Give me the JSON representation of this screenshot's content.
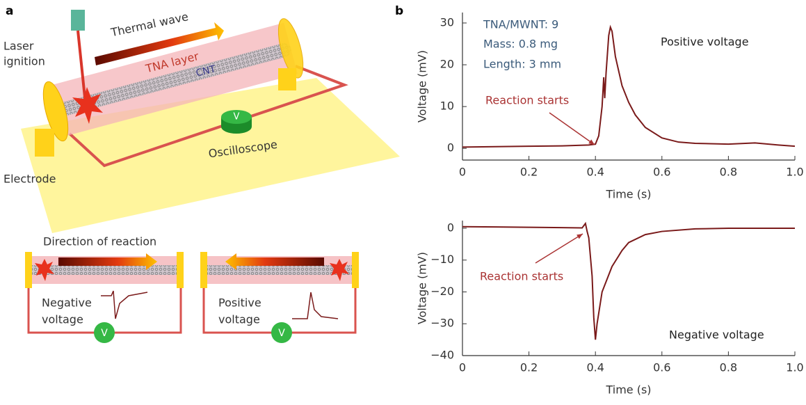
{
  "panels": {
    "a": "a",
    "b": "b"
  },
  "diagram": {
    "laser_ignition": [
      "Laser",
      "ignition"
    ],
    "thermal_wave": "Thermal wave",
    "tna_layer": "TNA layer",
    "cnt": "CNT",
    "electrode": "Electrode",
    "oscilloscope": "Oscilloscope",
    "meter": "V",
    "direction": "Direction of reaction",
    "negative": [
      "Negative",
      "voltage"
    ],
    "positive": [
      "Positive",
      "voltage"
    ],
    "meter_left": "V",
    "meter_right": "V"
  },
  "chart_data": [
    {
      "type": "line",
      "x_label": "Time (s)",
      "y_label": "Voltage (mV)",
      "annotations": [
        "TNA/MWNT: 9",
        "Mass: 0.8 mg",
        "Length: 3 mm",
        "Positive voltage",
        "Reaction starts"
      ],
      "x": [
        0,
        0.1,
        0.2,
        0.3,
        0.38,
        0.4,
        0.41,
        0.42,
        0.425,
        0.428,
        0.432,
        0.44,
        0.445,
        0.45,
        0.46,
        0.48,
        0.5,
        0.52,
        0.55,
        0.6,
        0.65,
        0.7,
        0.8,
        0.88,
        0.95,
        1.0
      ],
      "series": [
        {
          "color": "#7a1a1a",
          "values": [
            0.3,
            0.4,
            0.5,
            0.6,
            0.8,
            1,
            3,
            10,
            17,
            12,
            18,
            27,
            29,
            28,
            22,
            15,
            11,
            8,
            5,
            2.5,
            1.5,
            1.2,
            1,
            1.3,
            0.8,
            0.5
          ]
        }
      ],
      "xlim": [
        0,
        1
      ],
      "ylim": [
        -2.8,
        32.5
      ],
      "xticks": [
        0,
        0.2,
        0.4,
        0.6,
        0.8,
        {
          "value": 1,
          "label": "1.0"
        }
      ],
      "yticks": [
        0,
        10,
        20,
        30
      ]
    },
    {
      "type": "line",
      "x_label": "Time (s)",
      "y_label": "Voltage (mV)",
      "annotations": [
        "Reaction starts",
        "Negative voltage"
      ],
      "x": [
        0,
        0.1,
        0.2,
        0.3,
        0.36,
        0.37,
        0.375,
        0.38,
        0.39,
        0.395,
        0.4,
        0.405,
        0.42,
        0.45,
        0.48,
        0.5,
        0.55,
        0.6,
        0.7,
        0.8,
        1.0
      ],
      "series": [
        {
          "color": "#7a1a1a",
          "values": [
            0.5,
            0.4,
            0.3,
            0.2,
            0.1,
            1.5,
            -1,
            -3,
            -15,
            -28,
            -35,
            -30,
            -20,
            -12,
            -7,
            -4.5,
            -2,
            -1,
            -0.2,
            0,
            0
          ]
        }
      ],
      "xlim": [
        0,
        1
      ],
      "ylim": [
        -40,
        2.4
      ],
      "xticks": [
        0,
        0.2,
        0.4,
        0.6,
        0.8,
        {
          "value": 1,
          "label": "1.0"
        }
      ],
      "yticks": [
        {
          "value": -40,
          "label": "−40"
        },
        {
          "value": -30,
          "label": "−30"
        },
        {
          "value": -20,
          "label": "−20"
        },
        {
          "value": -10,
          "label": "−10"
        },
        0
      ]
    }
  ]
}
